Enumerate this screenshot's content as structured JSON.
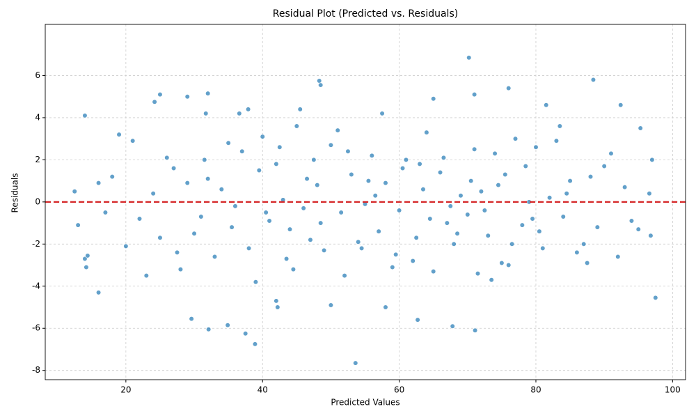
{
  "chart_data": {
    "type": "scatter",
    "title": "Residual Plot (Predicted vs. Residuals)",
    "x_label": "Predicted Values",
    "y_label": "Residuals",
    "color": "#1f77b4",
    "hline": 0,
    "hline_color": "#d62728",
    "grid": true,
    "xlim": [
      8.2,
      101.9
    ],
    "ylim": [
      -8.44,
      8.43
    ],
    "xticks": [
      20,
      40,
      60,
      80,
      100
    ],
    "yticks": [
      -8,
      -6,
      -4,
      -2,
      0,
      2,
      4,
      6
    ],
    "x": [
      70.2,
      48.3,
      88.4,
      53.6,
      38.9,
      37.5,
      71.1,
      32.1,
      67.8,
      34.9,
      29.6,
      62.7,
      25,
      32,
      76,
      14,
      29,
      97.5,
      92.4,
      13,
      12.5,
      14,
      14.4,
      14.2,
      16,
      65,
      71,
      48.5,
      31.7,
      24.2,
      97,
      96.6,
      96.8,
      95.3,
      36.6,
      37.9,
      42,
      42.2,
      50,
      58,
      18,
      22,
      26,
      30,
      34,
      38,
      42,
      46,
      50,
      54,
      58,
      62,
      66,
      70,
      74,
      78,
      82,
      86,
      90,
      94,
      20,
      24,
      28,
      32,
      36,
      40,
      44,
      48,
      52,
      56,
      60,
      64,
      68,
      72,
      76,
      80,
      84,
      88,
      92,
      17,
      21,
      25,
      29,
      33,
      37,
      41,
      45,
      49,
      53,
      57,
      61,
      65,
      69,
      73,
      77,
      81,
      85,
      89,
      93,
      19,
      23,
      27,
      31,
      35,
      39,
      43,
      47,
      51,
      55,
      59,
      63,
      67,
      71,
      75,
      79,
      83,
      87,
      91,
      95,
      16,
      35.5,
      39.5,
      43.5,
      47.5,
      51.5,
      55.5,
      59.5,
      63.5,
      67.5,
      71.5,
      75.5,
      79.5,
      83.5,
      87.5,
      27.5,
      31.5,
      45.5,
      57.5,
      73.5,
      81.5,
      40.5,
      42.5,
      44.5,
      46.5,
      48.5,
      52.5,
      54.5,
      56.5,
      60.5,
      62.5,
      64.5,
      66.5,
      68.5,
      70.5,
      72.5,
      74.5,
      76.5,
      78.5,
      80.5,
      84.5
    ],
    "values": [
      6.85,
      5.75,
      5.8,
      -7.65,
      -6.75,
      -6.25,
      -6.1,
      -6.05,
      -5.9,
      -5.85,
      -5.55,
      -5.6,
      5.1,
      5.15,
      5.4,
      4.1,
      5,
      -4.55,
      4.6,
      -1.1,
      0.5,
      -2.7,
      -2.55,
      -3.1,
      -4.3,
      4.9,
      5.1,
      5.55,
      4.2,
      4.75,
      2,
      0.4,
      -1.6,
      3.5,
      4.2,
      4.4,
      -4.7,
      -5,
      -4.9,
      -5,
      1.2,
      -0.8,
      2.1,
      -1.5,
      0.6,
      -2.2,
      1.8,
      -0.3,
      2.7,
      -1.9,
      0.9,
      -2.8,
      1.4,
      -0.6,
      2.3,
      -1.1,
      0.2,
      -2.4,
      1.7,
      -0.9,
      -2.1,
      0.4,
      -3.2,
      1.1,
      -0.2,
      3.1,
      -1.3,
      0.8,
      -3.5,
      2.2,
      -0.4,
      3.3,
      -2.0,
      0.5,
      -3.0,
      2.6,
      -0.7,
      1.2,
      -2.6,
      -0.5,
      2.9,
      -1.7,
      0.9,
      -2.6,
      2.4,
      -0.9,
      3.6,
      -2.3,
      1.3,
      -1.4,
      2.0,
      -3.3,
      0.3,
      -1.6,
      3.0,
      -2.2,
      1.0,
      -1.2,
      0.7,
      3.2,
      -3.5,
      1.6,
      -0.7,
      2.8,
      -3.8,
      0.1,
      -1.8,
      3.4,
      -0.1,
      -3.1,
      1.8,
      -1.0,
      2.5,
      -2.9,
      0.0,
      2.9,
      -2.0,
      2.3,
      -1.3,
      0.9,
      -1.2,
      1.5,
      -2.7,
      2.0,
      -0.5,
      1.0,
      -2.5,
      0.6,
      -0.2,
      -3.4,
      1.3,
      -0.8,
      3.6,
      -2.9,
      -2.4,
      2.0,
      4.4,
      4.2,
      -3.7,
      4.6,
      -0.5,
      2.6,
      -3.2,
      1.1,
      -1.0,
      2.4,
      -2.2,
      0.3,
      1.6,
      -1.7,
      -0.8,
      2.1,
      -1.5,
      1.0,
      -0.4,
      0.8,
      -2.0,
      1.7,
      -1.4,
      0.4
    ]
  }
}
